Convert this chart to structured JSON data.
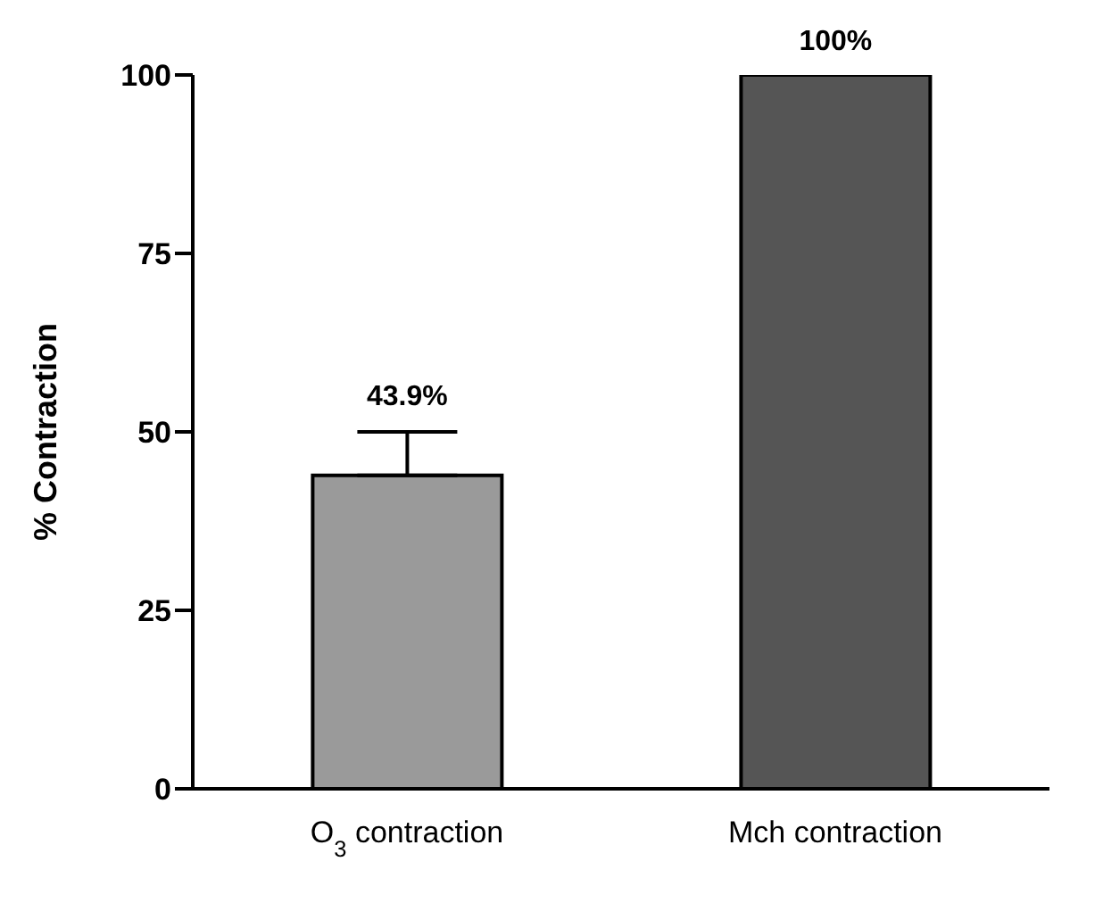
{
  "chart_data": {
    "type": "bar",
    "ylabel": "% Contraction",
    "categories": [
      "O$_{3}$ contraction",
      "Mch contraction"
    ],
    "values": [
      43.9,
      100
    ],
    "colors": [
      "#9a9a9a",
      "#555555"
    ],
    "errors": [
      [
        43.9,
        50
      ],
      null
    ],
    "value_labels": [
      "43.9%",
      "100%"
    ],
    "ylim": [
      0,
      100
    ],
    "yticks": [
      0,
      25,
      50,
      75,
      100
    ],
    "grid": false,
    "legend": false
  }
}
